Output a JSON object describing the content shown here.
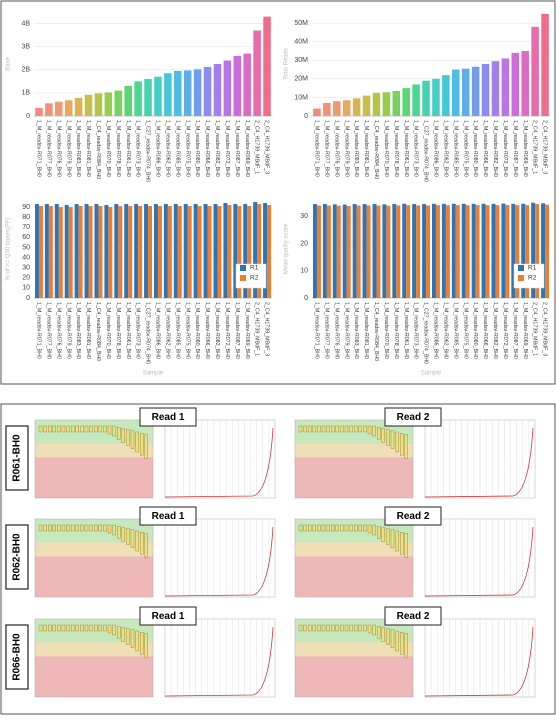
{
  "chart_data": [
    {
      "type": "bar",
      "y_label": "Base",
      "categories": [
        "1_M_readsv-R071_BH0",
        "1_M_readsv-R077_BH0",
        "1_M_readsv-R076_BH0",
        "1_M_readsv-R079_BH0",
        "1_M_readsv-R083_BH0",
        "1_M_readsv-R081_BH0",
        "1_C4_readsv-R084_BH0",
        "1_M_readsv-R070_BH0",
        "1_M_readsv-R078_BH0",
        "1_M_readsv-R061_BH0",
        "1_M_readsv-R073_BH0",
        "1_C27_readsv-R074_BH0",
        "1_M_readsv-R086_BH0",
        "1_M_readsv-R062_BH0",
        "1_M_readsv-R085_BH0",
        "1_M_readsv-R075_BH0",
        "1_M_readsv-R080_BH0",
        "1_M_readsv-R066_BH0",
        "1_M_readsv-R082_BH0",
        "1_M_readsv-R072_BH0",
        "1_M_readsv-R087_BH0",
        "1_M_readsv-R069_BH0",
        "2_C4_H1739_MBdF_1",
        "2_C4_H1739_MBdF_3"
      ],
      "values": [
        350000000,
        550000000,
        620000000,
        680000000,
        780000000,
        920000000,
        980000000,
        1020000000,
        1100000000,
        1300000000,
        1500000000,
        1600000000,
        1700000000,
        1850000000,
        1950000000,
        1970000000,
        2020000000,
        2120000000,
        2250000000,
        2400000000,
        2600000000,
        2700000000,
        3700000000,
        4300000000
      ],
      "colors": [
        "#f28a7e",
        "#f2917a",
        "#f09a6f",
        "#e9a85e",
        "#dcb352",
        "#c9bd4b",
        "#b3c54a",
        "#98cc4e",
        "#79d25d",
        "#5dd674",
        "#4bd691",
        "#45d3ad",
        "#45cfc4",
        "#47c7d6",
        "#4fbce3",
        "#5eade9",
        "#729deb",
        "#8a8ded",
        "#a27fec",
        "#b875e6",
        "#cb6ed9",
        "#da6cc6",
        "#e76ca9",
        "#ee6e8a"
      ],
      "ylim": [
        0,
        4500000000
      ],
      "yticks": [
        0,
        {
          "value": 1000000000,
          "label": "1B"
        },
        {
          "value": 2000000000,
          "label": "2B"
        },
        {
          "value": 3000000000,
          "label": "3B"
        },
        {
          "value": 4000000000,
          "label": "4B"
        }
      ],
      "grid": true
    },
    {
      "type": "bar",
      "y_label": "Total Reads",
      "categories": [
        "1_M_readsv-R071_BH0",
        "1_M_readsv-R077_BH0",
        "1_M_readsv-R076_BH0",
        "1_M_readsv-R079_BH0",
        "1_M_readsv-R083_BH0",
        "1_M_readsv-R081_BH0",
        "1_C4_readsv-R084_BH0",
        "1_M_readsv-R070_BH0",
        "1_M_readsv-R078_BH0",
        "1_M_readsv-R061_BH0",
        "1_M_readsv-R073_BH0",
        "1_C27_readsv-R074_BH0",
        "1_M_readsv-R086_BH0",
        "1_M_readsv-R062_BH0",
        "1_M_readsv-R085_BH0",
        "1_M_readsv-R075_BH0",
        "1_M_readsv-R080_BH0",
        "1_M_readsv-R066_BH0",
        "1_M_readsv-R082_BH0",
        "1_M_readsv-R072_BH0",
        "1_M_readsv-R087_BH0",
        "1_M_readsv-R069_BH0",
        "2_C4_H1739_MBdF_1",
        "2_C4_H1739_MBdF_3"
      ],
      "values": [
        4000000,
        7000000,
        8000000,
        8500000,
        9500000,
        11000000,
        12500000,
        12800000,
        13500000,
        15000000,
        17000000,
        19000000,
        20000000,
        22000000,
        25000000,
        25500000,
        26500000,
        28000000,
        29500000,
        31000000,
        34000000,
        35000000,
        48000000,
        55000000
      ],
      "colors": [
        "#f28a7e",
        "#f2917a",
        "#f09a6f",
        "#e9a85e",
        "#dcb352",
        "#c9bd4b",
        "#b3c54a",
        "#98cc4e",
        "#79d25d",
        "#5dd674",
        "#4bd691",
        "#45d3ad",
        "#45cfc4",
        "#47c7d6",
        "#4fbce3",
        "#5eade9",
        "#729deb",
        "#8a8ded",
        "#a27fec",
        "#b875e6",
        "#cb6ed9",
        "#da6cc6",
        "#e76ca9",
        "#ee6e8a"
      ],
      "ylim": [
        0,
        56000000
      ],
      "yticks": [
        0,
        {
          "value": 10000000,
          "label": "10M"
        },
        {
          "value": 20000000,
          "label": "20M"
        },
        {
          "value": 30000000,
          "label": "30M"
        },
        {
          "value": 40000000,
          "label": "40M"
        },
        {
          "value": 50000000,
          "label": "50M"
        }
      ],
      "grid": true
    },
    {
      "type": "bar",
      "y_label": "% of >= Q30 bases(PF)",
      "x_label": "Sample",
      "categories": [
        "1_M_readsv-R071_BH0",
        "1_M_readsv-R077_BH0",
        "1_M_readsv-R076_BH0",
        "1_M_readsv-R079_BH0",
        "1_M_readsv-R083_BH0",
        "1_M_readsv-R081_BH0",
        "1_C4_readsv-R084_BH0",
        "1_M_readsv-R070_BH0",
        "1_M_readsv-R078_BH0",
        "1_M_readsv-R061_BH0",
        "1_M_readsv-R073_BH0",
        "1_C27_readsv-R074_BH0",
        "1_M_readsv-R086_BH0",
        "1_M_readsv-R062_BH0",
        "1_M_readsv-R085_BH0",
        "1_M_readsv-R075_BH0",
        "1_M_readsv-R080_BH0",
        "1_M_readsv-R066_BH0",
        "1_M_readsv-R082_BH0",
        "1_M_readsv-R072_BH0",
        "1_M_readsv-R087_BH0",
        "1_M_readsv-R069_BH0",
        "2_C4_H1739_MBdF_1",
        "2_C4_H1739_MBdF_3"
      ],
      "series": [
        {
          "name": "R1",
          "color": "#2e75b6",
          "values": [
            93,
            93,
            93,
            92,
            93,
            93,
            93,
            92,
            93,
            93,
            93,
            93,
            93,
            93,
            93,
            93,
            93,
            93,
            93,
            94,
            93,
            93,
            95,
            94
          ]
        },
        {
          "name": "R2",
          "color": "#ed7d31",
          "values": [
            91,
            91,
            90,
            90,
            91,
            91,
            91,
            90,
            91,
            91,
            91,
            91,
            91,
            91,
            91,
            91,
            91,
            91,
            91,
            92,
            91,
            91,
            93,
            92
          ]
        }
      ],
      "ylim": [
        0,
        97
      ],
      "yticks": [
        0,
        10,
        20,
        30,
        40,
        50,
        60,
        70,
        80,
        90
      ],
      "grid": true,
      "legend": "lower right"
    },
    {
      "type": "bar",
      "y_label": "Mean quality score",
      "x_label": "Sample",
      "categories": [
        "1_M_readsv-R071_BH0",
        "1_M_readsv-R077_BH0",
        "1_M_readsv-R076_BH0",
        "1_M_readsv-R079_BH0",
        "1_M_readsv-R083_BH0",
        "1_M_readsv-R081_BH0",
        "1_C4_readsv-R084_BH0",
        "1_M_readsv-R070_BH0",
        "1_M_readsv-R078_BH0",
        "1_M_readsv-R061_BH0",
        "1_M_readsv-R073_BH0",
        "1_C27_readsv-R074_BH0",
        "1_M_readsv-R086_BH0",
        "1_M_readsv-R062_BH0",
        "1_M_readsv-R085_BH0",
        "1_M_readsv-R075_BH0",
        "1_M_readsv-R080_BH0",
        "1_M_readsv-R066_BH0",
        "1_M_readsv-R082_BH0",
        "1_M_readsv-R072_BH0",
        "1_M_readsv-R087_BH0",
        "1_M_readsv-R069_BH0",
        "2_C4_H1739_MBdF_1",
        "2_C4_H1739_MBdF_3"
      ],
      "series": [
        {
          "name": "R1",
          "color": "#2e75b6",
          "values": [
            34.5,
            34.5,
            34.4,
            34.3,
            34.5,
            34.5,
            34.5,
            34.4,
            34.5,
            34.6,
            34.5,
            34.5,
            34.6,
            34.6,
            34.6,
            34.6,
            34.6,
            34.6,
            34.6,
            34.7,
            34.6,
            34.6,
            35,
            34.8
          ]
        },
        {
          "name": "R2",
          "color": "#ed7d31",
          "values": [
            34,
            34,
            33.9,
            33.8,
            34,
            34,
            34,
            33.9,
            34,
            34.1,
            34,
            34,
            34.1,
            34.1,
            34.1,
            34.1,
            34.1,
            34.1,
            34.1,
            34.2,
            34.1,
            34.1,
            34.5,
            34.3
          ]
        }
      ],
      "ylim": [
        0,
        36
      ],
      "yticks": [
        0,
        10,
        20,
        30
      ],
      "grid": true,
      "legend": "lower right"
    }
  ],
  "fastqc_grid": {
    "rows": [
      {
        "sample": "R061-BH0",
        "read1": "Read 1",
        "read2": "Read 2"
      },
      {
        "sample": "R062-BH0",
        "read1": "Read 1",
        "read2": "Read 2"
      },
      {
        "sample": "R066-BH0",
        "read1": "Read 1",
        "read2": "Read 2"
      }
    ]
  }
}
